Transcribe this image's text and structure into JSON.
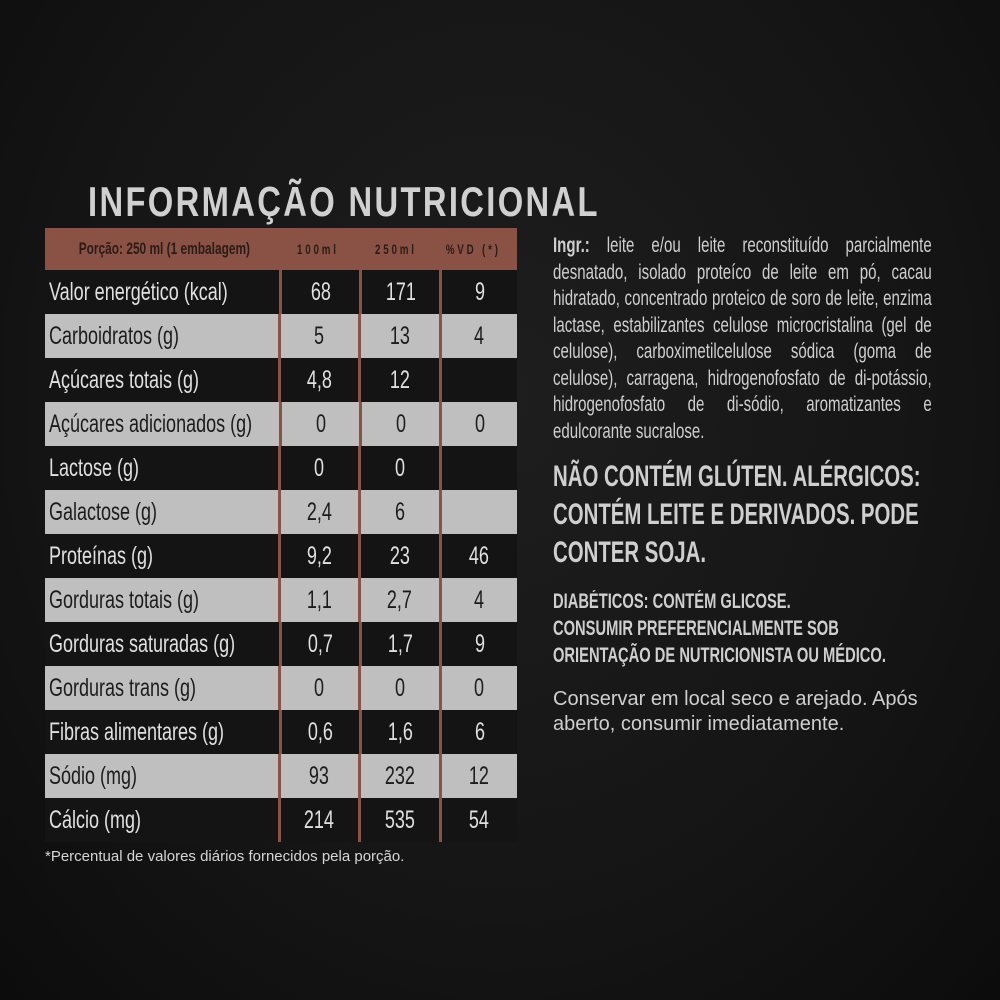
{
  "title": "INFORMAÇÃO NUTRICIONAL",
  "table": {
    "header": [
      "Porção: 250 ml (1 embalagem)",
      "100ml",
      "250ml",
      "%VD (*)"
    ],
    "rows": [
      [
        "Valor energético (kcal)",
        "68",
        "171",
        "9"
      ],
      [
        "Carboidratos (g)",
        "5",
        "13",
        "4"
      ],
      [
        "Açúcares totais (g)",
        "4,8",
        "12",
        ""
      ],
      [
        "Açúcares adicionados (g)",
        "0",
        "0",
        "0"
      ],
      [
        "Lactose (g)",
        "0",
        "0",
        ""
      ],
      [
        "Galactose (g)",
        "2,4",
        "6",
        ""
      ],
      [
        "Proteínas (g)",
        "9,2",
        "23",
        "46"
      ],
      [
        "Gorduras totais (g)",
        "1,1",
        "2,7",
        "4"
      ],
      [
        "Gorduras saturadas (g)",
        "0,7",
        "1,7",
        "9"
      ],
      [
        "Gorduras trans (g)",
        "0",
        "0",
        "0"
      ],
      [
        "Fibras alimentares (g)",
        "0,6",
        "1,6",
        "6"
      ],
      [
        "Sódio (mg)",
        "93",
        "232",
        "12"
      ],
      [
        "Cálcio (mg)",
        "214",
        "535",
        "54"
      ]
    ]
  },
  "footnote": "*Percentual de valores diários fornecidos pela porção.",
  "ingredients": {
    "label": "Ingr.:",
    "text": " leite e/ou leite reconstituído parcialmente desnatado, isolado proteíco de leite em pó, cacau hidratado, concentrado proteico de soro de leite, enzima lactase, estabilizantes celulose microcristalina (gel de celulose), carboximetilcelulose sódica (goma de celulose), carragena, hidrogenofosfato de di-potássio, hidrogenofosfato de di-sódio, aromatizantes e edulcorante sucralose."
  },
  "allergens": "NÃO CONTÉM GLÚTEN. ALÉRGICOS: CONTÉM LEITE E DERIVADOS. PODE CONTER SOJA.",
  "diabetics": [
    "DIABÉTICOS: CONTÉM GLICOSE.",
    "CONSUMIR PREFERENCIALMENTE SOB ORIENTAÇÃO DE NUTRICIONISTA OU MÉDICO."
  ],
  "storage": "Conservar em local seco e arejado. Após aberto, consumir imediatamente.",
  "colors": {
    "header_brown": "#8a5245",
    "row_light": "#bfbfbf",
    "row_dark": "#141414"
  }
}
